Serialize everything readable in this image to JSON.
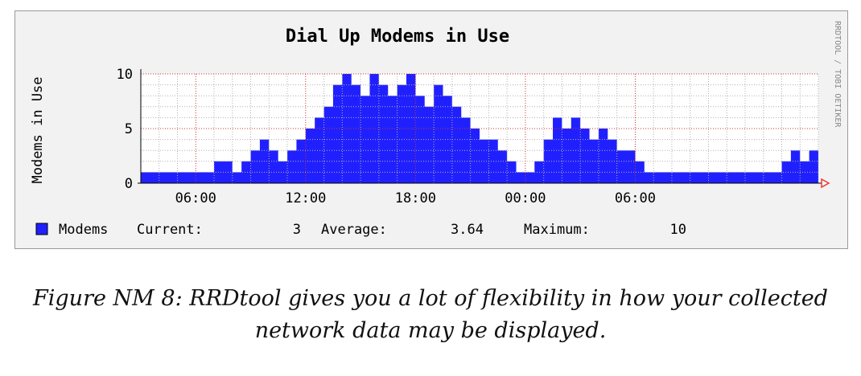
{
  "chart_data": {
    "type": "area",
    "title": "Dial Up Modems in Use",
    "ylabel": "Modems in Use",
    "watermark": "RRDTOOL / TOBI OETIKER",
    "ylim": [
      0,
      10
    ],
    "yticks": [
      "0",
      "5",
      "10"
    ],
    "xlim": [
      3.0,
      40.0
    ],
    "xticks": [
      {
        "x": 6.0,
        "label": "06:00"
      },
      {
        "x": 12.0,
        "label": "12:00"
      },
      {
        "x": 18.0,
        "label": "18:00"
      },
      {
        "x": 24.0,
        "label": "00:00"
      },
      {
        "x": 30.0,
        "label": "06:00"
      }
    ],
    "grid": true,
    "fill_color": "#2020ff",
    "series": [
      {
        "name": "Modems",
        "x": [
          3.0,
          3.5,
          4.0,
          4.5,
          5.0,
          5.5,
          6.0,
          6.5,
          7.0,
          7.5,
          8.0,
          8.5,
          9.0,
          9.5,
          10.0,
          10.5,
          11.0,
          11.5,
          12.0,
          12.5,
          13.0,
          13.5,
          14.0,
          14.5,
          15.0,
          15.5,
          16.0,
          16.5,
          17.0,
          17.5,
          18.0,
          18.5,
          19.0,
          19.5,
          20.0,
          20.5,
          21.0,
          21.5,
          22.0,
          22.5,
          23.0,
          23.5,
          24.0,
          24.5,
          25.0,
          25.5,
          26.0,
          26.5,
          27.0,
          27.5,
          28.0,
          28.5,
          29.0,
          29.5,
          30.0,
          30.5,
          31.0,
          31.5,
          32.0,
          32.5,
          33.0,
          33.5,
          34.0,
          34.5,
          35.0,
          35.5,
          36.0,
          36.5,
          37.0,
          37.5,
          38.0,
          38.5,
          39.0,
          39.5,
          40.0
        ],
        "values": [
          1,
          1,
          1,
          1,
          1,
          1,
          1,
          1,
          2,
          2,
          1,
          2,
          3,
          4,
          3,
          2,
          3,
          4,
          5,
          6,
          7,
          9,
          10,
          9,
          8,
          10,
          9,
          8,
          9,
          10,
          8,
          7,
          9,
          8,
          7,
          6,
          5,
          4,
          4,
          3,
          2,
          1,
          1,
          2,
          4,
          6,
          5,
          6,
          5,
          4,
          5,
          4,
          3,
          3,
          2,
          1,
          1,
          1,
          1,
          1,
          1,
          1,
          1,
          1,
          1,
          1,
          1,
          1,
          1,
          1,
          2,
          3,
          2,
          3,
          3
        ]
      }
    ],
    "stats": {
      "series_label": "Modems",
      "current_label": "Current:",
      "current_value": "3",
      "average_label": "Average:",
      "average_value": "3.64",
      "maximum_label": "Maximum:",
      "maximum_value": "10"
    }
  },
  "caption": {
    "line1": "Figure NM 8: RRDtool gives you a lot of flexibility in how your collected",
    "line2": "network data may be displayed."
  }
}
